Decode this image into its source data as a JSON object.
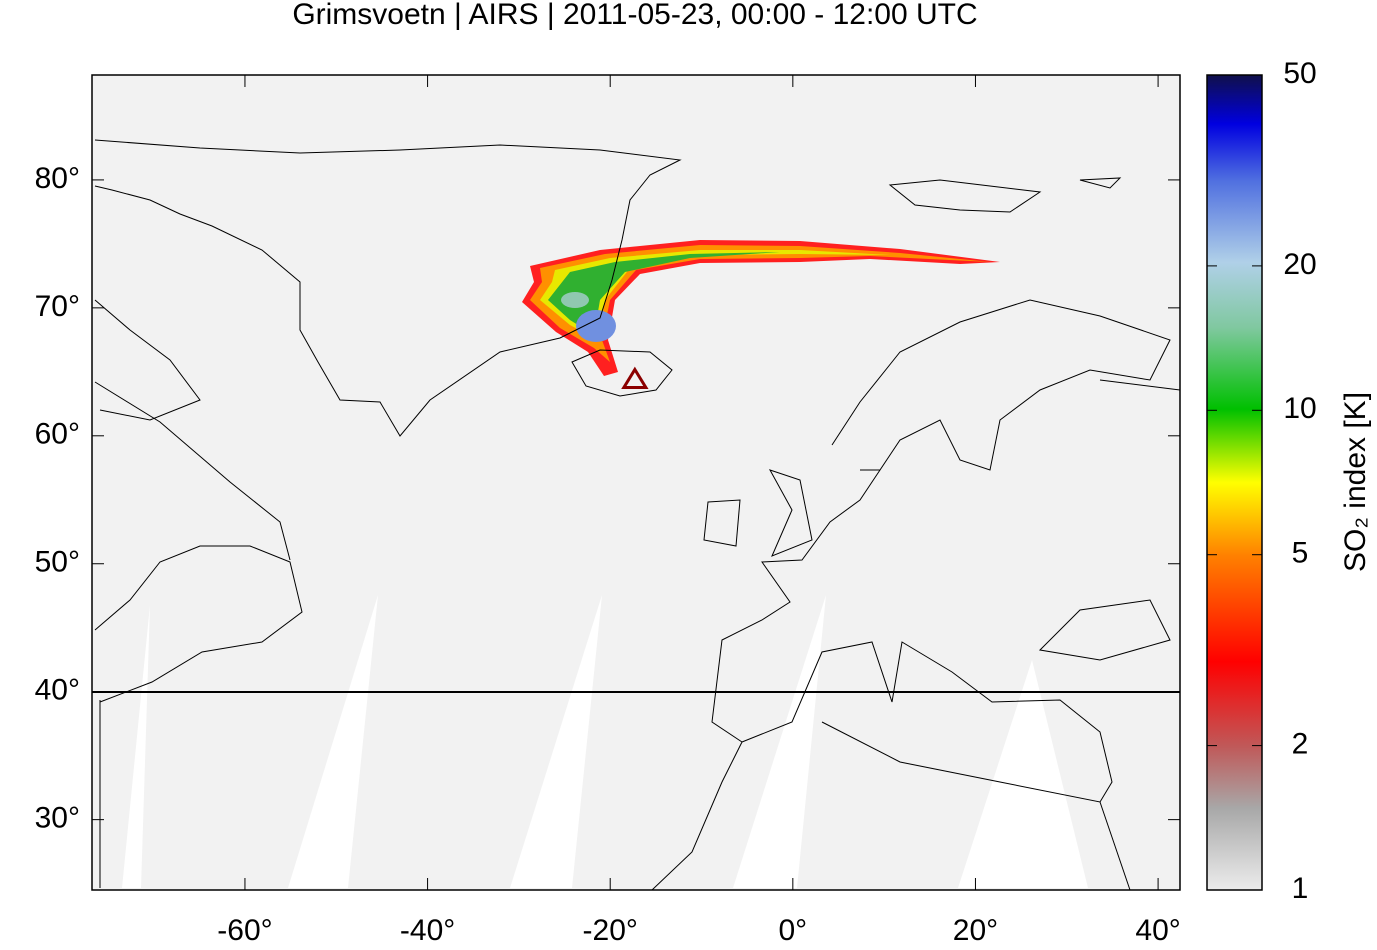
{
  "chart_data": {
    "type": "map",
    "title": "Grimsvoetn | AIRS | 2011-05-23, 00:00 - 12:00 UTC",
    "xlim": [
      -76.75,
      42.4
    ],
    "ylim": [
      24.5,
      88.2
    ],
    "xticks": [
      {
        "value": -60,
        "label": "-60°"
      },
      {
        "value": -40,
        "label": "-40°"
      },
      {
        "value": -20,
        "label": "-20°"
      },
      {
        "value": 0,
        "label": "0°"
      },
      {
        "value": 20,
        "label": "20°"
      },
      {
        "value": 40,
        "label": "40°"
      }
    ],
    "yticks": [
      {
        "value": 30,
        "label": "30°"
      },
      {
        "value": 40,
        "label": "40°"
      },
      {
        "value": 50,
        "label": "50°"
      },
      {
        "value": 60,
        "label": "60°"
      },
      {
        "value": 70,
        "label": "70°"
      },
      {
        "value": 80,
        "label": "80°"
      }
    ],
    "colorbar": {
      "label": "SO₂ index [K]",
      "lim": [
        1,
        50
      ],
      "ticks": [
        1,
        2,
        5,
        10,
        20,
        50
      ],
      "log": true
    },
    "points": {
      "x": [
        -17.3
      ],
      "y": [
        64.4
      ],
      "color": "#8b0000"
    }
  }
}
